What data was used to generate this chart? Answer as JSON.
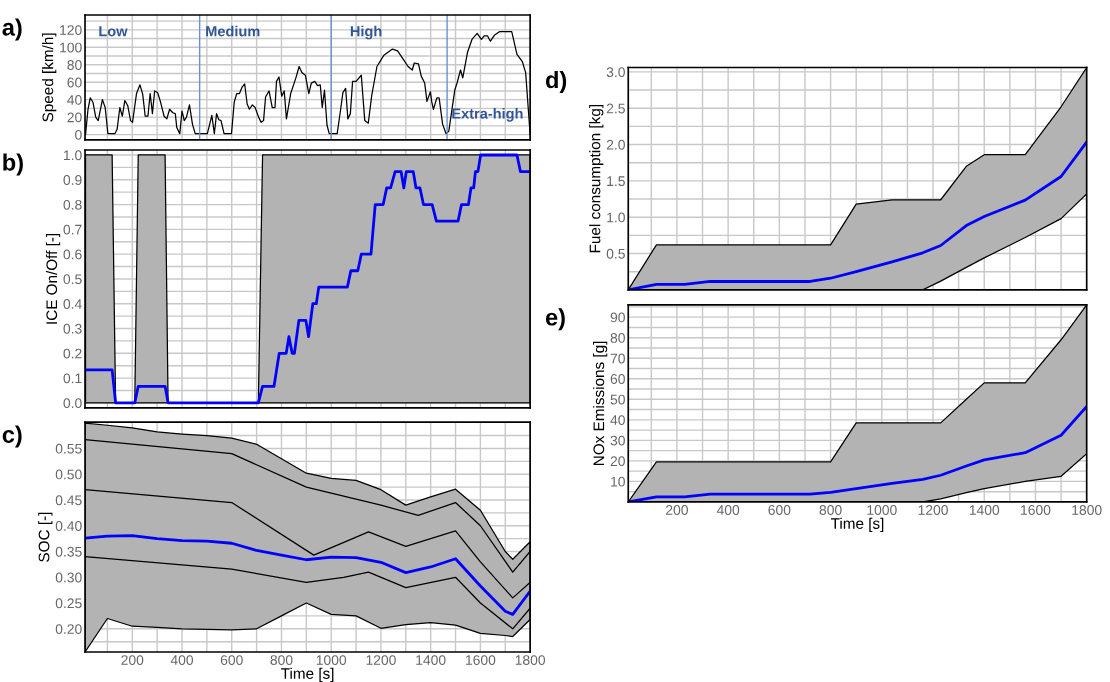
{
  "chart_data": [
    {
      "type": "line",
      "ylabel": "Speed [km/h]",
      "annotations": [
        "a)",
        "Low",
        "Medium",
        "High",
        "Extra-high"
      ],
      "xlim": [
        10,
        1800
      ],
      "ylim": [
        -6,
        137
      ],
      "tick_labels": "y",
      "grid": true,
      "xticks": [
        {
          "value": 100,
          "label": null
        },
        {
          "value": 200,
          "label": null
        },
        {
          "value": 300,
          "label": null
        },
        {
          "value": 400,
          "label": null
        },
        {
          "value": 500,
          "label": null
        },
        {
          "value": 600,
          "label": null
        },
        {
          "value": 700,
          "label": null
        },
        {
          "value": 800,
          "label": null
        },
        {
          "value": 900,
          "label": null
        },
        {
          "value": 1000,
          "label": null
        },
        {
          "value": 1100,
          "label": null
        },
        {
          "value": 1200,
          "label": null
        },
        {
          "value": 1300,
          "label": null
        },
        {
          "value": 1400,
          "label": null
        },
        {
          "value": 1500,
          "label": null
        },
        {
          "value": 1600,
          "label": null
        },
        {
          "value": 1700,
          "label": null
        }
      ],
      "yticks": [
        0,
        {
          "value": 10,
          "label": null
        },
        20,
        {
          "value": 30,
          "label": null
        },
        40,
        {
          "value": 50,
          "label": null
        },
        60,
        {
          "value": 70,
          "label": null
        },
        80,
        {
          "value": 90,
          "label": null
        },
        100,
        {
          "value": 110,
          "label": null
        },
        120,
        {
          "value": 130,
          "label": null
        }
      ],
      "ref_lines": [
        {
          "axis": "x",
          "value": 471,
          "color": "#6a8fd0"
        },
        {
          "axis": "x",
          "value": 1000,
          "color": "#6a8fd0"
        },
        {
          "axis": "x",
          "value": 1466,
          "color": "#6a8fd0"
        }
      ],
      "series": [
        {
          "color": "#000000",
          "x": [
            12,
            22,
            31,
            42,
            53,
            63,
            80,
            91,
            102,
            130,
            139,
            150,
            160,
            170,
            182,
            193,
            201,
            217,
            231,
            242,
            252,
            263,
            272,
            281,
            290,
            302,
            314,
            328,
            339,
            350,
            363,
            373,
            379,
            391,
            400,
            409,
            418,
            430,
            442,
            453,
            502,
            520,
            530,
            539,
            548,
            557,
            569,
            599,
            610,
            620,
            631,
            641,
            652,
            662,
            671,
            683,
            694,
            708,
            718,
            728,
            736,
            750,
            763,
            774,
            780,
            790,
            801,
            811,
            820,
            837,
            858,
            871,
            882,
            896,
            910,
            920,
            934,
            945,
            956,
            964,
            973,
            983,
            992,
            1024,
            1038,
            1047,
            1058,
            1067,
            1077,
            1086,
            1100,
            1121,
            1135,
            1149,
            1163,
            1184,
            1212,
            1246,
            1267,
            1288,
            1309,
            1326,
            1334,
            1351,
            1362,
            1376,
            1385,
            1399,
            1404,
            1411,
            1425,
            1434,
            1448,
            1462,
            1473,
            1497,
            1506,
            1520,
            1529,
            1548,
            1566,
            1587,
            1604,
            1615,
            1629,
            1640,
            1657,
            1678,
            1726,
            1747,
            1768,
            1782,
            1800
          ],
          "values": [
            0,
            29,
            42,
            37,
            20,
            16,
            40,
            31,
            1,
            1,
            6,
            31,
            21,
            39,
            33,
            16,
            14,
            47,
            57,
            46,
            21,
            21,
            47,
            24,
            50,
            48,
            37,
            21,
            18,
            29,
            25,
            24,
            8,
            1,
            27,
            16,
            20,
            34,
            12,
            1,
            1,
            22,
            1,
            24,
            17,
            16,
            1,
            1,
            37,
            47,
            47,
            54,
            58,
            35,
            29,
            34,
            31,
            20,
            14,
            16,
            43,
            50,
            31,
            31,
            61,
            66,
            44,
            50,
            18,
            47,
            65,
            78,
            71,
            68,
            47,
            59,
            61,
            56,
            57,
            31,
            51,
            11,
            1,
            1,
            29,
            48,
            53,
            18,
            24,
            61,
            61,
            68,
            16,
            13,
            45,
            78,
            91,
            98,
            96,
            87,
            78,
            74,
            82,
            81,
            67,
            59,
            38,
            49,
            38,
            29,
            42,
            42,
            12,
            1,
            4,
            51,
            59,
            74,
            65,
            94,
            109,
            116,
            109,
            113,
            113,
            107,
            114,
            118,
            118,
            92,
            84,
            71,
            0
          ]
        }
      ]
    },
    {
      "type": "line",
      "ylabel": "ICE On/Off [-]",
      "annotations": [
        "b)"
      ],
      "xlim": [
        10,
        1800
      ],
      "ylim": [
        -0.02,
        1.02
      ],
      "tick_labels": "y",
      "grid": true,
      "xticks": [
        {
          "value": 100,
          "label": null
        },
        {
          "value": 200,
          "label": null
        },
        {
          "value": 300,
          "label": null
        },
        {
          "value": 400,
          "label": null
        },
        {
          "value": 500,
          "label": null
        },
        {
          "value": 600,
          "label": null
        },
        {
          "value": 700,
          "label": null
        },
        {
          "value": 800,
          "label": null
        },
        {
          "value": 900,
          "label": null
        },
        {
          "value": 1000,
          "label": null
        },
        {
          "value": 1100,
          "label": null
        },
        {
          "value": 1200,
          "label": null
        },
        {
          "value": 1300,
          "label": null
        },
        {
          "value": 1400,
          "label": null
        },
        {
          "value": 1500,
          "label": null
        },
        {
          "value": 1600,
          "label": null
        },
        {
          "value": 1700,
          "label": null
        }
      ],
      "yticks": [
        {
          "value": 0.0,
          "label": "0.0"
        },
        {
          "value": 0.05,
          "label": null
        },
        0.1,
        {
          "value": 0.15,
          "label": null
        },
        0.2,
        {
          "value": 0.25,
          "label": null
        },
        0.3,
        {
          "value": 0.35,
          "label": null
        },
        0.4,
        {
          "value": 0.45,
          "label": null
        },
        0.5,
        {
          "value": 0.55,
          "label": null
        },
        0.6,
        {
          "value": 0.65,
          "label": null
        },
        0.7,
        {
          "value": 0.75,
          "label": null
        },
        0.8,
        {
          "value": 0.85,
          "label": null
        },
        0.9,
        {
          "value": 0.95,
          "label": null
        },
        {
          "value": 1.0,
          "label": "1.0"
        }
      ],
      "series": [
        {
          "color": "#0000ff",
          "x": [
            12,
            119,
            133,
            210,
            224,
            332,
            344,
            707,
            724,
            770,
            791,
            819,
            830,
            843,
            852,
            870,
            898,
            909,
            926,
            940,
            950,
            1065,
            1079,
            1107,
            1121,
            1160,
            1177,
            1209,
            1223,
            1239,
            1257,
            1281,
            1292,
            1302,
            1330,
            1341,
            1357,
            1371,
            1406,
            1423,
            1510,
            1524,
            1552,
            1562,
            1573,
            1580,
            1590,
            1601,
            1747,
            1761,
            1800
          ],
          "values": [
            0.133,
            0.133,
            0,
            0,
            0.067,
            0.067,
            0,
            0,
            0.067,
            0.067,
            0.2,
            0.2,
            0.267,
            0.2,
            0.2,
            0.333,
            0.333,
            0.267,
            0.4,
            0.4,
            0.467,
            0.467,
            0.533,
            0.533,
            0.6,
            0.6,
            0.8,
            0.8,
            0.867,
            0.867,
            0.933,
            0.933,
            0.867,
            0.933,
            0.933,
            0.867,
            0.867,
            0.8,
            0.8,
            0.733,
            0.733,
            0.8,
            0.8,
            0.867,
            0.867,
            0.933,
            0.933,
            1.0,
            1.0,
            0.933,
            0.933
          ],
          "lower": [
            0,
            0,
            0,
            0,
            0,
            0,
            0,
            0,
            0,
            0,
            0,
            0,
            0,
            0,
            0,
            0,
            0,
            0,
            0,
            0,
            0,
            0,
            0,
            0,
            0,
            0,
            0,
            0,
            0,
            0,
            0,
            0,
            0,
            0,
            0,
            0,
            0,
            0,
            0,
            0,
            0,
            0,
            0,
            0,
            0,
            0,
            0,
            0,
            0,
            0,
            0
          ],
          "upper": [
            1,
            1,
            0,
            0,
            1,
            1,
            0,
            0,
            1,
            1,
            1,
            1,
            1,
            1,
            1,
            1,
            1,
            1,
            1,
            1,
            1,
            1,
            1,
            1,
            1,
            1,
            1,
            1,
            1,
            1,
            1,
            1,
            1,
            1,
            1,
            1,
            1,
            1,
            1,
            1,
            1,
            1,
            1,
            1,
            1,
            1,
            1,
            1,
            1,
            1,
            1
          ]
        }
      ]
    },
    {
      "type": "line",
      "ylabel": "SOC [-]",
      "xlabel": "Time [s]",
      "annotations": [
        "c)"
      ],
      "xlim": [
        10,
        1800
      ],
      "ylim": [
        0.155,
        0.601
      ],
      "grid": true,
      "xticks": [
        {
          "value": 100,
          "label": null
        },
        200,
        {
          "value": 300,
          "label": null
        },
        400,
        {
          "value": 500,
          "label": null
        },
        600,
        {
          "value": 700,
          "label": null
        },
        800,
        {
          "value": 900,
          "label": null
        },
        1000,
        {
          "value": 1100,
          "label": null
        },
        1200,
        {
          "value": 1300,
          "label": null
        },
        1400,
        {
          "value": 1500,
          "label": null
        },
        1600,
        {
          "value": 1700,
          "label": null
        },
        1800
      ],
      "yticks": [
        {
          "value": 0.175,
          "label": null
        },
        {
          "value": 0.2,
          "label": "0.20"
        },
        {
          "value": 0.225,
          "label": null
        },
        0.25,
        {
          "value": 0.3,
          "label": "0.30"
        },
        0.35,
        {
          "value": 0.375,
          "label": null
        },
        {
          "value": 0.4,
          "label": "0.40"
        },
        {
          "value": 0.425,
          "label": null
        },
        0.45,
        {
          "value": 0.475,
          "label": null
        },
        {
          "value": 0.5,
          "label": "0.50"
        },
        {
          "value": 0.525,
          "label": null
        },
        0.55,
        {
          "value": 0.575,
          "label": null
        }
      ],
      "series": [
        {
          "color": "#0000ff",
          "x": [
            10,
            100,
            200,
            300,
            400,
            500,
            600,
            700,
            800,
            900,
            1000,
            1100,
            1200,
            1300,
            1400,
            1500,
            1600,
            1700,
            1730,
            1800
          ],
          "values": [
            0.376,
            0.38,
            0.381,
            0.375,
            0.371,
            0.37,
            0.366,
            0.352,
            0.343,
            0.334,
            0.339,
            0.338,
            0.329,
            0.309,
            0.32,
            0.336,
            0.283,
            0.234,
            0.228,
            0.273
          ],
          "lower": [
            0.155,
            0.22,
            0.205,
            0.203,
            0.2,
            0.199,
            0.198,
            0.2,
            0.225,
            0.25,
            0.228,
            0.225,
            0.201,
            0.208,
            0.212,
            0.207,
            0.191,
            0.187,
            0.185,
            0.218
          ],
          "upper": [
            0.599,
            0.595,
            0.59,
            0.582,
            0.578,
            0.575,
            0.57,
            0.558,
            0.53,
            0.502,
            0.492,
            0.488,
            0.47,
            0.44,
            0.456,
            0.471,
            0.43,
            0.35,
            0.335,
            0.369
          ]
        },
        {
          "color": "#000000",
          "x": [
            10,
            600,
            900,
            1200,
            1350,
            1500,
            1600,
            1730,
            1800
          ],
          "values": [
            0.567,
            0.54,
            0.475,
            0.44,
            0.42,
            0.445,
            0.4,
            0.31,
            0.35
          ]
        },
        {
          "color": "#000000",
          "x": [
            10,
            600,
            930,
            1150,
            1300,
            1500,
            1600,
            1730,
            1800
          ],
          "values": [
            0.47,
            0.445,
            0.343,
            0.388,
            0.36,
            0.39,
            0.33,
            0.26,
            0.29
          ]
        },
        {
          "color": "#000000",
          "x": [
            10,
            600,
            900,
            1050,
            1150,
            1300,
            1500,
            1600,
            1730,
            1800
          ],
          "values": [
            0.34,
            0.316,
            0.29,
            0.3,
            0.31,
            0.28,
            0.3,
            0.25,
            0.2,
            0.24
          ]
        }
      ]
    },
    {
      "type": "line",
      "ylabel": "Fuel consumption [kg]",
      "annotations": [
        "d)"
      ],
      "xlim": [
        10,
        1800
      ],
      "ylim": [
        0,
        3.06
      ],
      "tick_labels": "y",
      "grid": true,
      "xticks": [
        {
          "value": 100,
          "label": null
        },
        {
          "value": 200,
          "label": null
        },
        {
          "value": 300,
          "label": null
        },
        {
          "value": 400,
          "label": null
        },
        {
          "value": 500,
          "label": null
        },
        {
          "value": 600,
          "label": null
        },
        {
          "value": 700,
          "label": null
        },
        {
          "value": 800,
          "label": null
        },
        {
          "value": 900,
          "label": null
        },
        {
          "value": 1000,
          "label": null
        },
        {
          "value": 1100,
          "label": null
        },
        {
          "value": 1200,
          "label": null
        },
        {
          "value": 1300,
          "label": null
        },
        {
          "value": 1400,
          "label": null
        },
        {
          "value": 1500,
          "label": null
        },
        {
          "value": 1600,
          "label": null
        },
        {
          "value": 1700,
          "label": null
        }
      ],
      "yticks": [
        {
          "value": 0.25,
          "label": null
        },
        0.5,
        {
          "value": 0.75,
          "label": null
        },
        {
          "value": 1.0,
          "label": "1.0"
        },
        {
          "value": 1.25,
          "label": null
        },
        1.5,
        {
          "value": 1.75,
          "label": null
        },
        {
          "value": 2.0,
          "label": "2.0"
        },
        {
          "value": 2.25,
          "label": null
        },
        2.5,
        {
          "value": 2.75,
          "label": null
        },
        {
          "value": 3.0,
          "label": "3.0"
        }
      ],
      "series": [
        {
          "color": "#0000ff",
          "x": [
            10,
            120,
            230,
            330,
            720,
            800,
            900,
            1040,
            1160,
            1230,
            1330,
            1400,
            1560,
            1700,
            1800
          ],
          "values": [
            0,
            0.075,
            0.075,
            0.115,
            0.115,
            0.16,
            0.25,
            0.385,
            0.51,
            0.61,
            0.885,
            1.01,
            1.235,
            1.56,
            2.035
          ],
          "lower": [
            0,
            0,
            0,
            0,
            0,
            0,
            0,
            0,
            0,
            0.12,
            0.31,
            0.44,
            0.72,
            0.98,
            1.32
          ],
          "upper": [
            0,
            0.62,
            0.62,
            0.62,
            0.62,
            0.62,
            1.18,
            1.24,
            1.24,
            1.24,
            1.7,
            1.86,
            1.86,
            2.52,
            3.06
          ]
        }
      ]
    },
    {
      "type": "line",
      "ylabel": "NOx Emissions [g]",
      "xlabel": "Time [s]",
      "annotations": [
        "e)"
      ],
      "xlim": [
        10,
        1800
      ],
      "ylim": [
        0,
        96
      ],
      "grid": true,
      "xticks": [
        {
          "value": 100,
          "label": null
        },
        200,
        {
          "value": 300,
          "label": null
        },
        400,
        {
          "value": 500,
          "label": null
        },
        600,
        {
          "value": 700,
          "label": null
        },
        800,
        {
          "value": 900,
          "label": null
        },
        1000,
        {
          "value": 1100,
          "label": null
        },
        1200,
        {
          "value": 1300,
          "label": null
        },
        1400,
        {
          "value": 1500,
          "label": null
        },
        1600,
        {
          "value": 1700,
          "label": null
        },
        1800
      ],
      "yticks": [
        {
          "value": 5,
          "label": null
        },
        10,
        {
          "value": 15,
          "label": null
        },
        20,
        {
          "value": 25,
          "label": null
        },
        30,
        {
          "value": 35,
          "label": null
        },
        40,
        {
          "value": 45,
          "label": null
        },
        50,
        {
          "value": 55,
          "label": null
        },
        60,
        {
          "value": 65,
          "label": null
        },
        70,
        {
          "value": 75,
          "label": null
        },
        80,
        {
          "value": 85,
          "label": null
        },
        90,
        {
          "value": 95,
          "label": null
        }
      ],
      "series": [
        {
          "color": "#0000ff",
          "x": [
            10,
            120,
            230,
            330,
            720,
            800,
            900,
            1040,
            1160,
            1230,
            1330,
            1400,
            1560,
            1700,
            1800
          ],
          "values": [
            0,
            2.5,
            2.5,
            3.8,
            3.8,
            4.7,
            6.5,
            9,
            11,
            13,
            17.5,
            20.5,
            24,
            32.5,
            46.5
          ],
          "lower": [
            0,
            0,
            0,
            0,
            0,
            0,
            0,
            0,
            0,
            1.5,
            4.5,
            6.5,
            10,
            12.5,
            23.5
          ],
          "upper": [
            0,
            19.5,
            19.5,
            19.5,
            19.5,
            19.5,
            38.5,
            38.5,
            38.5,
            38.5,
            50,
            58,
            58,
            79,
            96
          ]
        }
      ]
    }
  ]
}
